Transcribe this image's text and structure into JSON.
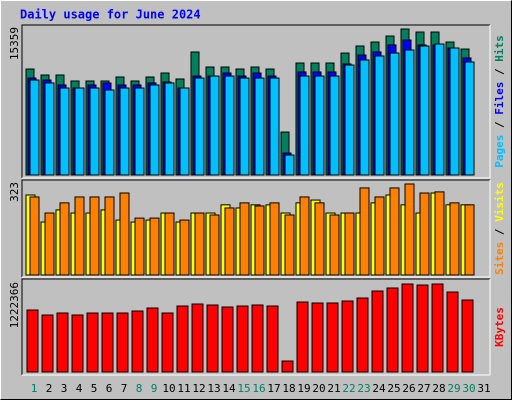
{
  "chart_data": {
    "type": "bar",
    "title": "Daily usage for June 2024",
    "categories": [
      1,
      2,
      3,
      4,
      5,
      6,
      7,
      8,
      9,
      10,
      11,
      12,
      13,
      14,
      15,
      16,
      17,
      18,
      19,
      20,
      21,
      22,
      23,
      24,
      25,
      26,
      27,
      28,
      29,
      30,
      31
    ],
    "category_colors": [
      "#00805c",
      "#000000",
      "#000000",
      "#000000",
      "#000000",
      "#000000",
      "#000000",
      "#00805c",
      "#00805c",
      "#000000",
      "#000000",
      "#000000",
      "#000000",
      "#000000",
      "#00805c",
      "#00805c",
      "#000000",
      "#000000",
      "#000000",
      "#000000",
      "#000000",
      "#00805c",
      "#00805c",
      "#000000",
      "#000000",
      "#000000",
      "#000000",
      "#000000",
      "#00805c",
      "#00805c",
      "#000000"
    ],
    "legend_separator": " / ",
    "panels": [
      {
        "ylim": [
          0,
          15359
        ],
        "yticks": [
          15359
        ],
        "series": [
          {
            "name": "Hits",
            "color": "#00805c",
            "values": [
              11150,
              10520,
              10520,
              9890,
              9890,
              9890,
              10310,
              9890,
              10310,
              10730,
              10100,
              12940,
              11360,
              11360,
              11150,
              11360,
              11150,
              4520,
              11780,
              11780,
              11780,
              12830,
              13570,
              13990,
              14620,
              15359,
              15040,
              15040,
              13990,
              13250,
              0
            ]
          },
          {
            "name": "Files",
            "color": "#0000ff",
            "values": [
              10200,
              9990,
              9470,
              9150,
              9470,
              9680,
              9470,
              9470,
              9680,
              9780,
              9150,
              10410,
              10410,
              10730,
              10410,
              10730,
              10410,
              2310,
              10840,
              10840,
              10840,
              11680,
              12620,
              12940,
              13680,
              14200,
              13680,
              13680,
              13360,
              12310,
              0
            ]
          },
          {
            "name": "Pages",
            "color": "#00c0ff",
            "values": [
              9990,
              9680,
              9150,
              9150,
              9150,
              8940,
              9150,
              9150,
              9470,
              9680,
              9150,
              10200,
              10410,
              10410,
              10200,
              10200,
              10200,
              2100,
              10410,
              10410,
              10410,
              11570,
              12100,
              12520,
              12830,
              13150,
              13570,
              13780,
              13360,
              11890,
              0
            ]
          }
        ]
      },
      {
        "ylim": [
          0,
          323
        ],
        "yticks": [
          323
        ],
        "series": [
          {
            "name": "Visits",
            "color": "#ffff00",
            "values": [
              284,
              188,
              231,
              220,
              220,
              231,
              195,
              188,
              195,
              220,
              188,
              220,
              220,
              249,
              238,
              249,
              249,
              220,
              256,
              266,
              220,
              220,
              220,
              256,
              284,
              249,
              220,
              291,
              249,
              249,
              0
            ]
          },
          {
            "name": "Sites",
            "color": "#ff8000",
            "values": [
              277,
              220,
              256,
              277,
              277,
              277,
              291,
              202,
              202,
              220,
              195,
              220,
              213,
              238,
              256,
              245,
              256,
              213,
              277,
              256,
              213,
              220,
              309,
              277,
              309,
              323,
              291,
              295,
              256,
              249,
              0
            ]
          }
        ]
      },
      {
        "ylim": [
          0,
          1222366
        ],
        "yticks": [
          1222366
        ],
        "series": [
          {
            "name": "KBytes",
            "color": "#ff0000",
            "values": [
              861180,
              791730,
              819510,
              791730,
              819510,
              819510,
              819510,
              847290,
              888960,
              819510,
              916740,
              944520,
              930630,
              902850,
              916740,
              930630,
              916740,
              152790,
              972300,
              958410,
              958410,
              986190,
              1027860,
              1125090,
              1166760,
              1222366,
              1208430,
              1222366,
              1111200,
              1000080,
              0
            ]
          }
        ]
      }
    ]
  }
}
